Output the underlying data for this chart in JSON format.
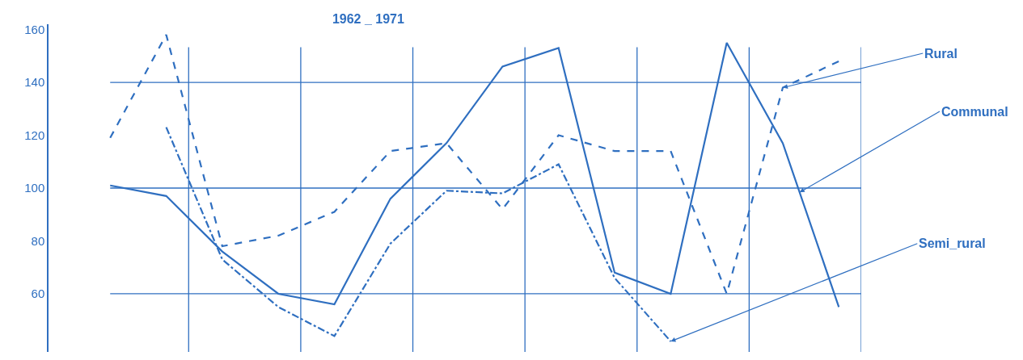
{
  "chart_data": {
    "type": "line",
    "title": "1962 _ 1971",
    "categories": [
      null,
      null,
      null,
      null,
      null,
      null,
      null,
      null,
      null,
      null,
      null,
      null,
      null,
      null
    ],
    "series": [
      {
        "name": "Rural",
        "color": "#2f6fc0",
        "line_style": "dashed",
        "values": [
          119,
          158,
          78,
          82,
          91,
          114,
          117,
          92,
          120,
          114,
          114,
          60,
          138,
          148
        ]
      },
      {
        "name": "Communal",
        "color": "#2f6fc0",
        "line_style": "solid",
        "values": [
          101,
          97,
          76,
          60,
          56,
          96,
          117,
          146,
          153,
          68,
          60,
          155,
          117,
          55
        ]
      },
      {
        "name": "Semi_rural",
        "color": "#2f6fc0",
        "line_style": "dashdot",
        "values": [
          null,
          123,
          73,
          55,
          44,
          79,
          99,
          98,
          109,
          66,
          42,
          null,
          null,
          null
        ]
      }
    ],
    "ylim": [
      38,
      162
    ],
    "yticks": [
      60,
      80,
      100,
      120,
      140,
      160
    ],
    "grid": true,
    "legend": false,
    "marker": "none"
  }
}
